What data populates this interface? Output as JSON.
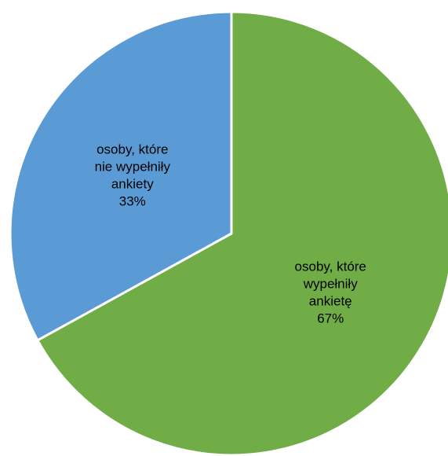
{
  "chart_data": {
    "type": "pie",
    "slices": [
      {
        "label_lines": [
          "osoby, które",
          "wypełniły",
          "ankietę"
        ],
        "percent_label": "67%",
        "value": 67,
        "color": "#70ad47"
      },
      {
        "label_lines": [
          "osoby, które",
          "nie wypełniły",
          "ankiety"
        ],
        "percent_label": "33%",
        "value": 33,
        "color": "#5b9bd5"
      }
    ],
    "start_angle_deg": 0,
    "direction": "clockwise",
    "slice_border_color": "#ffffff",
    "legend": "none"
  }
}
